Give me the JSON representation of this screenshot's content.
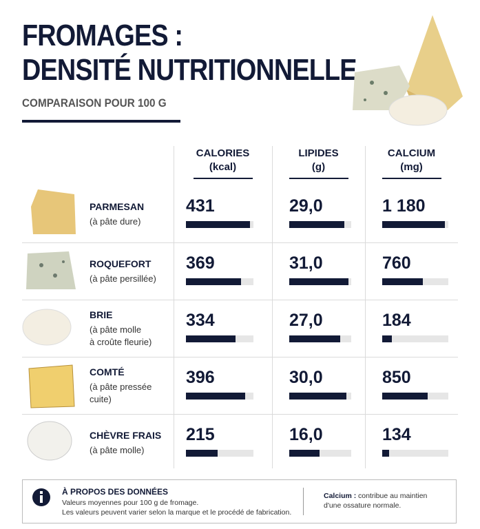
{
  "header": {
    "title_lines": [
      "FROMAGES :",
      "DENSITÉ NUTRITIONNELLE"
    ],
    "subtitle": "COMPARAISON POUR 100 G"
  },
  "table": {
    "columns": [
      {
        "title": "CALORIES",
        "unit": "(kcal)",
        "values": [
          431,
          369,
          334,
          396,
          215
        ],
        "value_labels": [
          "431",
          "369",
          "334",
          "396",
          "215"
        ]
      },
      {
        "title": "LIPIDES",
        "unit": "(g)",
        "values": [
          29,
          31,
          27,
          30,
          16
        ],
        "value_labels": [
          "29,0",
          "31,0",
          "27,0",
          "30,0",
          "16,0"
        ]
      },
      {
        "title": "CALCIUM",
        "unit": "(mg)",
        "values": [
          1180,
          760,
          184,
          850,
          134
        ],
        "value_labels": [
          "1 180",
          "760",
          "184",
          "850",
          "134"
        ]
      }
    ],
    "rows": [
      {
        "name": "PARMESAN",
        "detail": [
          "(à pâte dure)"
        ]
      },
      {
        "name": "ROQUEFORT",
        "detail": [
          "(à pâte persillée)"
        ]
      },
      {
        "name": "BRIE",
        "detail": [
          "(à pâte molle",
          "à croûte fleurie)"
        ]
      },
      {
        "name": "COMTÉ",
        "detail": [
          "(à pâte pressée",
          "cuite)"
        ]
      },
      {
        "name": "CHÈVRE FRAIS",
        "detail": [
          "(à pâte molle)"
        ]
      }
    ]
  },
  "footer": {
    "heading": "À PROPOS DES DONNÉES",
    "lines": [
      "Valeurs moyennes pour 100 g de fromage.",
      "Les valeurs peuvent varier selon la marque et le procédé de fabrication."
    ],
    "note_label": "Calcium :",
    "note_lines": [
      "contribue au maintien",
      "d'une ossature normale."
    ]
  }
}
